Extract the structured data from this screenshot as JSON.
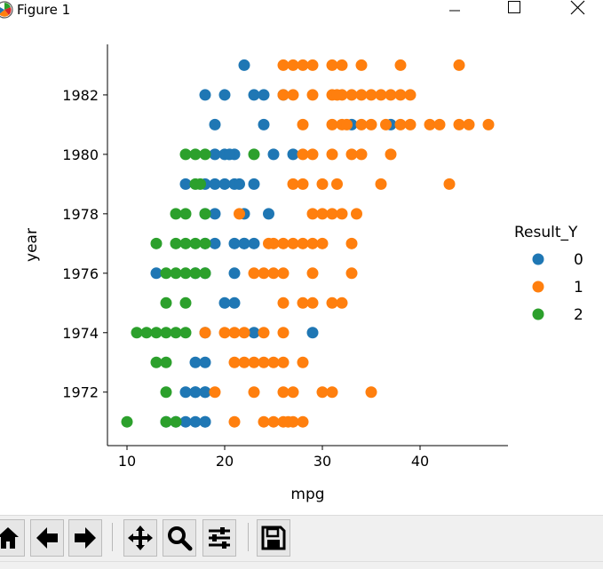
{
  "window": {
    "title": "Figure 1"
  },
  "toolbar": {
    "buttons": [
      "home-icon",
      "back-arrow-icon",
      "forward-arrow-icon",
      "pan-icon",
      "zoom-icon",
      "configure-subplots-icon",
      "save-icon"
    ]
  },
  "palette": {
    "0": "#1f77b4",
    "1": "#ff7f0e",
    "2": "#2ca02c"
  },
  "chart_data": {
    "type": "scatter",
    "title": "",
    "xlabel": "mpg",
    "ylabel": "year",
    "xlim": [
      8,
      49
    ],
    "ylim": [
      1970.2,
      1983.7
    ],
    "xticks": [
      10,
      20,
      30,
      40
    ],
    "yticks": [
      1972,
      1974,
      1976,
      1978,
      1980,
      1982
    ],
    "grid": false,
    "legend": {
      "title": "Result_Y",
      "placement": "right",
      "entries": [
        "0",
        "1",
        "2"
      ]
    },
    "series": [
      {
        "name": "0",
        "points": [
          [
            18,
            1971
          ],
          [
            16,
            1971
          ],
          [
            17,
            1971
          ],
          [
            14,
            1971
          ],
          [
            15,
            1971
          ],
          [
            18,
            1971
          ],
          [
            16,
            1972
          ],
          [
            17,
            1972
          ],
          [
            18,
            1972
          ],
          [
            18,
            1972
          ],
          [
            17,
            1972
          ],
          [
            17,
            1973
          ],
          [
            18,
            1973
          ],
          [
            23,
            1974
          ],
          [
            29,
            1974
          ],
          [
            18,
            1974
          ],
          [
            21,
            1975
          ],
          [
            20,
            1975
          ],
          [
            13,
            1976
          ],
          [
            21,
            1976
          ],
          [
            18,
            1976
          ],
          [
            17,
            1976
          ],
          [
            18,
            1977
          ],
          [
            22,
            1977
          ],
          [
            21,
            1977
          ],
          [
            19,
            1977
          ],
          [
            23,
            1977
          ],
          [
            22,
            1977
          ],
          [
            18,
            1978
          ],
          [
            19,
            1978
          ],
          [
            22,
            1978
          ],
          [
            24.5,
            1978
          ],
          [
            18,
            1979
          ],
          [
            19,
            1979
          ],
          [
            21,
            1979
          ],
          [
            20,
            1979
          ],
          [
            23,
            1979
          ],
          [
            16,
            1979
          ],
          [
            21.5,
            1979
          ],
          [
            19,
            1980
          ],
          [
            20,
            1980
          ],
          [
            21,
            1980
          ],
          [
            25,
            1980
          ],
          [
            27,
            1980
          ],
          [
            20.5,
            1980
          ],
          [
            24,
            1981
          ],
          [
            19,
            1981
          ],
          [
            33,
            1981
          ],
          [
            37,
            1981
          ],
          [
            18,
            1982
          ],
          [
            20,
            1982
          ],
          [
            23,
            1982
          ],
          [
            24,
            1982
          ],
          [
            26,
            1982
          ],
          [
            22,
            1983
          ]
        ]
      },
      {
        "name": "1",
        "points": [
          [
            21,
            1971
          ],
          [
            24,
            1971
          ],
          [
            25,
            1971
          ],
          [
            26,
            1971
          ],
          [
            27,
            1971
          ],
          [
            28,
            1971
          ],
          [
            26.5,
            1971
          ],
          [
            19,
            1972
          ],
          [
            23,
            1972
          ],
          [
            26,
            1972
          ],
          [
            27,
            1972
          ],
          [
            30,
            1972
          ],
          [
            31,
            1972
          ],
          [
            35,
            1972
          ],
          [
            21,
            1973
          ],
          [
            22,
            1973
          ],
          [
            23,
            1973
          ],
          [
            24,
            1973
          ],
          [
            25,
            1973
          ],
          [
            26,
            1973
          ],
          [
            28,
            1973
          ],
          [
            18,
            1974
          ],
          [
            20,
            1974
          ],
          [
            21,
            1974
          ],
          [
            22,
            1974
          ],
          [
            24,
            1974
          ],
          [
            26,
            1974
          ],
          [
            26,
            1975
          ],
          [
            28,
            1975
          ],
          [
            29,
            1975
          ],
          [
            31,
            1975
          ],
          [
            32,
            1975
          ],
          [
            24,
            1976
          ],
          [
            25,
            1976
          ],
          [
            26,
            1976
          ],
          [
            29,
            1976
          ],
          [
            33,
            1976
          ],
          [
            23,
            1976
          ],
          [
            25,
            1977
          ],
          [
            26,
            1977
          ],
          [
            27,
            1977
          ],
          [
            28,
            1977
          ],
          [
            29,
            1977
          ],
          [
            30,
            1977
          ],
          [
            33,
            1977
          ],
          [
            24.5,
            1977
          ],
          [
            21.5,
            1978
          ],
          [
            29,
            1978
          ],
          [
            30,
            1978
          ],
          [
            31,
            1978
          ],
          [
            32,
            1978
          ],
          [
            33.5,
            1978
          ],
          [
            27,
            1979
          ],
          [
            28,
            1979
          ],
          [
            30,
            1979
          ],
          [
            31.5,
            1979
          ],
          [
            36,
            1979
          ],
          [
            43,
            1979
          ],
          [
            28,
            1980
          ],
          [
            29,
            1980
          ],
          [
            31,
            1980
          ],
          [
            33,
            1980
          ],
          [
            34,
            1980
          ],
          [
            37,
            1980
          ],
          [
            28,
            1981
          ],
          [
            31,
            1981
          ],
          [
            32,
            1981
          ],
          [
            34,
            1981
          ],
          [
            35,
            1981
          ],
          [
            38,
            1981
          ],
          [
            39,
            1981
          ],
          [
            41,
            1981
          ],
          [
            42,
            1981
          ],
          [
            44,
            1981
          ],
          [
            45,
            1981
          ],
          [
            47,
            1981
          ],
          [
            32.5,
            1981
          ],
          [
            36.5,
            1981
          ],
          [
            26,
            1982
          ],
          [
            27,
            1982
          ],
          [
            29,
            1982
          ],
          [
            31,
            1982
          ],
          [
            32,
            1982
          ],
          [
            33,
            1982
          ],
          [
            34,
            1982
          ],
          [
            35,
            1982
          ],
          [
            36,
            1982
          ],
          [
            37,
            1982
          ],
          [
            38,
            1982
          ],
          [
            39,
            1982
          ],
          [
            31.5,
            1982
          ],
          [
            26,
            1983
          ],
          [
            27,
            1983
          ],
          [
            28,
            1983
          ],
          [
            29,
            1983
          ],
          [
            31,
            1983
          ],
          [
            32,
            1983
          ],
          [
            34,
            1983
          ],
          [
            38,
            1983
          ],
          [
            44,
            1983
          ]
        ]
      },
      {
        "name": "2",
        "points": [
          [
            10,
            1971
          ],
          [
            14,
            1971
          ],
          [
            15,
            1971
          ],
          [
            14,
            1972
          ],
          [
            13,
            1973
          ],
          [
            14,
            1973
          ],
          [
            11,
            1974
          ],
          [
            12,
            1974
          ],
          [
            13,
            1974
          ],
          [
            14,
            1974
          ],
          [
            15,
            1974
          ],
          [
            16,
            1974
          ],
          [
            14,
            1975
          ],
          [
            16,
            1975
          ],
          [
            14,
            1976
          ],
          [
            15,
            1976
          ],
          [
            16,
            1976
          ],
          [
            17,
            1976
          ],
          [
            18,
            1976
          ],
          [
            13,
            1977
          ],
          [
            15,
            1977
          ],
          [
            16,
            1977
          ],
          [
            17,
            1977
          ],
          [
            18,
            1977
          ],
          [
            15,
            1978
          ],
          [
            16,
            1978
          ],
          [
            18,
            1978
          ],
          [
            17,
            1979
          ],
          [
            17.5,
            1979
          ],
          [
            16,
            1980
          ],
          [
            17,
            1980
          ],
          [
            18,
            1980
          ],
          [
            23,
            1980
          ]
        ]
      }
    ]
  }
}
